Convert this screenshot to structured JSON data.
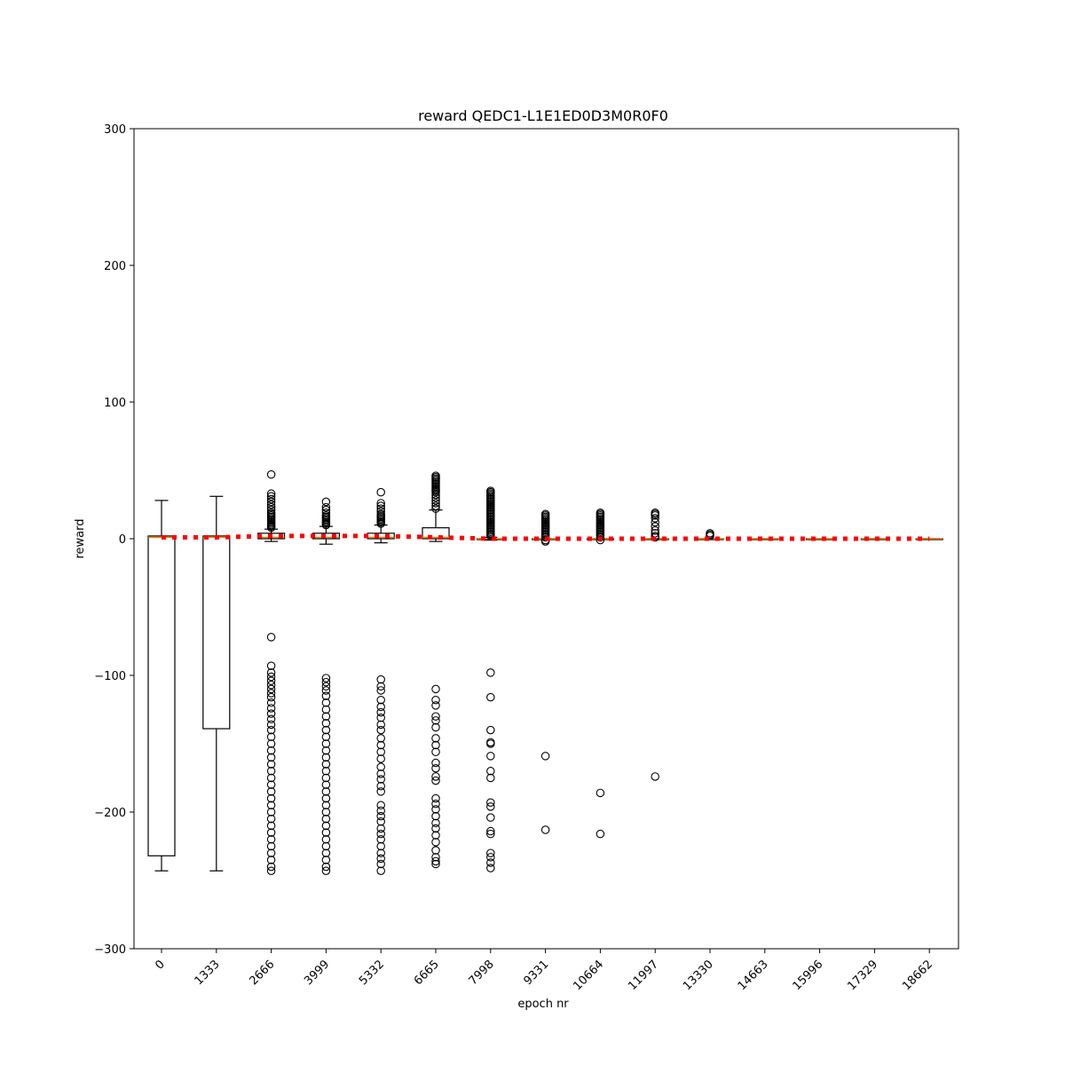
{
  "chart_data": {
    "type": "box",
    "title": "reward QEDC1-L1E1ED0D3M0R0F0",
    "xlabel": "epoch nr",
    "ylabel": "reward",
    "ylim": [
      -300,
      300
    ],
    "yticks": [
      -300,
      -200,
      -100,
      0,
      100,
      200,
      300
    ],
    "yticklabels": [
      "−300",
      "−200",
      "−100",
      "0",
      "100",
      "200",
      "300"
    ],
    "categories": [
      "0",
      "1333",
      "2666",
      "3999",
      "5332",
      "6665",
      "7998",
      "9331",
      "10664",
      "11997",
      "13330",
      "14663",
      "15996",
      "17329",
      "18662"
    ],
    "boxes": [
      {
        "category": "0",
        "whislo": -243,
        "q1": -232,
        "med": 1,
        "q3": 2,
        "whishi": 28,
        "fliers": []
      },
      {
        "category": "1333",
        "whislo": -243,
        "q1": -139,
        "med": 1,
        "q3": 2,
        "whishi": 31,
        "fliers": []
      },
      {
        "category": "2666",
        "whislo": -2,
        "q1": 0,
        "med": 1,
        "q3": 4,
        "whishi": 7,
        "fliers": [
          47,
          33,
          31,
          29,
          27,
          25,
          23,
          21,
          19,
          18,
          17,
          16,
          15,
          14,
          13,
          12,
          11,
          10,
          9,
          8,
          -72,
          -93,
          -98,
          -101,
          -104,
          -107,
          -110,
          -113,
          -116,
          -120,
          -124,
          -128,
          -132,
          -136,
          -140,
          -145,
          -150,
          -155,
          -160,
          -165,
          -170,
          -175,
          -180,
          -185,
          -190,
          -195,
          -200,
          -205,
          -210,
          -215,
          -220,
          -225,
          -230,
          -235,
          -240,
          -243
        ]
      },
      {
        "category": "3999",
        "whislo": -4,
        "q1": 0,
        "med": 1,
        "q3": 4,
        "whishi": 9,
        "fliers": [
          27,
          23,
          21,
          19,
          17,
          16,
          15,
          14,
          13,
          12,
          11,
          10,
          -102,
          -105,
          -108,
          -111,
          -115,
          -120,
          -125,
          -130,
          -135,
          -140,
          -145,
          -150,
          -155,
          -160,
          -165,
          -170,
          -175,
          -180,
          -185,
          -190,
          -195,
          -200,
          -205,
          -210,
          -215,
          -220,
          -225,
          -230,
          -235,
          -240,
          -243
        ]
      },
      {
        "category": "5332",
        "whislo": -3,
        "q1": 0,
        "med": 1,
        "q3": 4,
        "whishi": 10,
        "fliers": [
          34,
          26,
          24,
          22,
          20,
          18,
          17,
          16,
          15,
          14,
          13,
          12,
          11,
          -103,
          -108,
          -111,
          -118,
          -123,
          -127,
          -131,
          -136,
          -140,
          -146,
          -151,
          -156,
          -161,
          -167,
          -172,
          -176,
          -181,
          -185,
          -195,
          -199,
          -203,
          -207,
          -212,
          -216,
          -220,
          -225,
          -230,
          -234,
          -238,
          -243
        ]
      },
      {
        "category": "6665",
        "whislo": -2,
        "q1": 0,
        "med": 1,
        "q3": 8,
        "whishi": 21,
        "fliers": [
          46,
          45,
          44,
          43,
          42,
          41,
          40,
          39,
          38,
          37,
          36,
          35,
          34,
          32,
          30,
          28,
          26,
          24,
          22,
          -110,
          -118,
          -122,
          -130,
          -133,
          -138,
          -146,
          -151,
          -156,
          -164,
          -168,
          -174,
          -177,
          -190,
          -194,
          -198,
          -203,
          -208,
          -212,
          -217,
          -222,
          -228,
          -233,
          -236,
          -238
        ]
      },
      {
        "category": "7998",
        "whislo": -1,
        "q1": 0,
        "med": 0,
        "q3": 0,
        "whishi": 1,
        "fliers": [
          35,
          34,
          33,
          32,
          31,
          30,
          29,
          28,
          27,
          26,
          25,
          24,
          23,
          22,
          21,
          20,
          19,
          18,
          17,
          16,
          15,
          14,
          13,
          12,
          11,
          10,
          9,
          8,
          7,
          6,
          5,
          4,
          3,
          2,
          -98,
          -116,
          -140,
          -149,
          -150,
          -159,
          -170,
          -175,
          -193,
          -196,
          -204,
          -214,
          -216,
          -230,
          -233,
          -237,
          -241
        ]
      },
      {
        "category": "9331",
        "whislo": 0,
        "q1": 0,
        "med": 0,
        "q3": 0,
        "whishi": 0,
        "fliers": [
          18,
          17,
          16,
          15,
          14,
          13,
          12,
          11,
          10,
          9,
          8,
          7,
          6,
          5,
          4,
          3,
          2,
          1,
          -1,
          -2,
          -159,
          -213
        ]
      },
      {
        "category": "10664",
        "whislo": 0,
        "q1": 0,
        "med": 0,
        "q3": 0,
        "whishi": 0,
        "fliers": [
          19,
          18,
          17,
          16,
          15,
          14,
          13,
          12,
          11,
          10,
          9,
          8,
          7,
          6,
          5,
          4,
          3,
          2,
          1,
          -1,
          -186,
          -216
        ]
      },
      {
        "category": "11997",
        "whislo": 0,
        "q1": 0,
        "med": 0,
        "q3": 0,
        "whishi": 0,
        "fliers": [
          19,
          18,
          17,
          15,
          12,
          9,
          6,
          4,
          2,
          1,
          -174
        ]
      },
      {
        "category": "13330",
        "whislo": 0,
        "q1": 0,
        "med": 0,
        "q3": 0,
        "whishi": 0,
        "fliers": [
          4,
          3,
          2
        ]
      },
      {
        "category": "14663",
        "whislo": 0,
        "q1": 0,
        "med": 0,
        "q3": 0,
        "whishi": 0,
        "fliers": []
      },
      {
        "category": "15996",
        "whislo": 0,
        "q1": 0,
        "med": 0,
        "q3": 0,
        "whishi": 0,
        "fliers": []
      },
      {
        "category": "17329",
        "whislo": 0,
        "q1": 0,
        "med": 0,
        "q3": 0,
        "whishi": 0,
        "fliers": []
      },
      {
        "category": "18662",
        "whislo": 0,
        "q1": 0,
        "med": 0,
        "q3": 0,
        "whishi": 0,
        "fliers": []
      }
    ],
    "mean_line": {
      "values": [
        1,
        1,
        2,
        2,
        2,
        1,
        0,
        0,
        0,
        0,
        0,
        0,
        0,
        0,
        0
      ],
      "color": "#ff0000",
      "style": "dotted"
    },
    "median_color": "#ff7f0e",
    "grid": false,
    "legend": "none"
  }
}
